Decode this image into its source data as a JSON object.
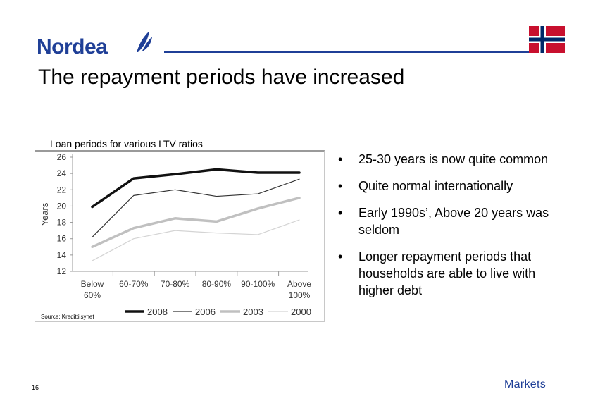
{
  "header": {
    "logo_text": "Nordea",
    "flag_country": "norway-flag-icon",
    "brand_color": "#1f3f97"
  },
  "slide": {
    "title": "The repayment periods have increased",
    "page_number": "16",
    "footer_brand": "Markets"
  },
  "bullets": [
    "25-30 years is now quite common",
    "Quite normal internationally",
    "Early 1990s’, Above 20 years was seldom",
    "Longer repayment periods that households are able to live with higher debt"
  ],
  "chart_data": {
    "type": "line",
    "title": "Loan periods for various LTV ratios",
    "ylabel": "Years",
    "xlabel": "",
    "source": "Source: Kredittilsynet",
    "categories": [
      "Below 60%",
      "60-70%",
      "70-80%",
      "80-90%",
      "90-100%",
      "Above 100%"
    ],
    "ylim": [
      12,
      26
    ],
    "yticks": [
      12,
      14,
      16,
      18,
      20,
      22,
      24,
      26
    ],
    "grid": false,
    "legend_position": "bottom",
    "series": [
      {
        "name": "2008",
        "values": [
          19.9,
          23.4,
          23.9,
          24.5,
          24.1,
          24.1
        ],
        "color": "#111111",
        "width": 3.5
      },
      {
        "name": "2006",
        "values": [
          16.2,
          21.3,
          22.0,
          21.2,
          21.5,
          23.3
        ],
        "color": "#333333",
        "width": 1.2
      },
      {
        "name": "2003",
        "values": [
          15.0,
          17.3,
          18.5,
          18.1,
          19.7,
          21.0
        ],
        "color": "#c0c0c0",
        "width": 3.5
      },
      {
        "name": "2000",
        "values": [
          13.3,
          16.0,
          17.0,
          16.7,
          16.5,
          18.3
        ],
        "color": "#d4d4d4",
        "width": 1.2
      }
    ]
  }
}
